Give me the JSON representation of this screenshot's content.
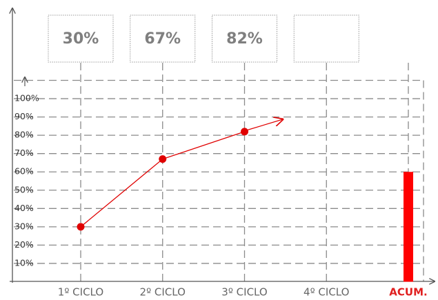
{
  "chart_data": {
    "type": "line",
    "categories": [
      "1º CICLO",
      "2º CICLO",
      "3º CICLO",
      "4º CICLO",
      "ACUM."
    ],
    "category_colors": [
      "#666666",
      "#666666",
      "#666666",
      "#666666",
      "#e02020"
    ],
    "series": [
      {
        "type": "line",
        "color": "#e00000",
        "values": [
          30,
          67,
          82,
          null,
          null
        ],
        "value_labels": [
          "30%",
          "67%",
          "82%",
          null,
          null
        ]
      },
      {
        "type": "bar",
        "color": "#ff0000",
        "values": [
          null,
          null,
          null,
          null,
          60
        ]
      }
    ],
    "ylim": [
      0,
      110
    ],
    "yticks": [
      {
        "value": 10,
        "label": "10%"
      },
      {
        "value": 20,
        "label": "20%"
      },
      {
        "value": 30,
        "label": "30%"
      },
      {
        "value": 40,
        "label": "40%"
      },
      {
        "value": 50,
        "label": "50%"
      },
      {
        "value": 60,
        "label": "60%"
      },
      {
        "value": 70,
        "label": "70%"
      },
      {
        "value": 80,
        "label": "80%"
      },
      {
        "value": 90,
        "label": "90%"
      },
      {
        "value": 100,
        "label": "100%"
      }
    ],
    "grid": true
  }
}
